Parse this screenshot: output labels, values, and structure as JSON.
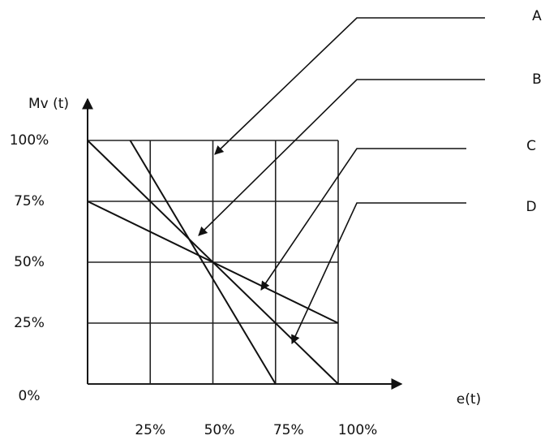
{
  "chart_data": {
    "type": "line",
    "y_label": "Mv (t)",
    "x_label": "e(t)",
    "annotation": "A",
    "xlim": [
      0,
      100
    ],
    "ylim": [
      0,
      100
    ],
    "xticks": [
      {
        "value": 25,
        "label": "25%"
      },
      {
        "value": 50,
        "label": "50%"
      },
      {
        "value": 75,
        "label": "75%"
      },
      {
        "value": 100,
        "label": "100%"
      }
    ],
    "yticks": [
      {
        "value": 0,
        "label": "0%"
      },
      {
        "value": 25,
        "label": "25%"
      },
      {
        "value": 50,
        "label": "50%"
      },
      {
        "value": 75,
        "label": "75%"
      },
      {
        "value": 100,
        "label": "100%"
      }
    ],
    "grid": true,
    "series": [
      {
        "name": "B",
        "color": "#111111",
        "x": [
          17,
          75
        ],
        "values": [
          100,
          0
        ]
      },
      {
        "name": "C",
        "color": "#111111",
        "x": [
          0,
          100
        ],
        "values": [
          75,
          25
        ]
      },
      {
        "name": "D",
        "color": "#111111",
        "x": [
          0,
          100
        ],
        "values": [
          100,
          0
        ]
      }
    ]
  }
}
